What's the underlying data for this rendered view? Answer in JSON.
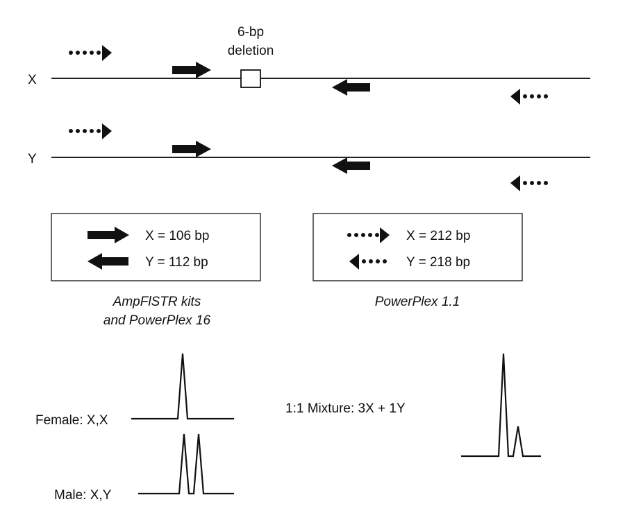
{
  "chromosomes": {
    "x_label": "X",
    "y_label": "Y"
  },
  "deletion": {
    "line1": "6-bp",
    "line2": "deletion"
  },
  "legend_left": {
    "x_size": "X = 106 bp",
    "y_size": "Y = 112 bp",
    "caption_line1": "AmpFlSTR kits",
    "caption_line2": "and PowerPlex 16"
  },
  "legend_right": {
    "x_size": "X = 212 bp",
    "y_size": "Y = 218 bp",
    "caption": "PowerPlex 1.1"
  },
  "profiles": {
    "female": "Female: X,X",
    "male": "Male: X,Y",
    "mixture": "1:1 Mixture: 3X + 1Y"
  }
}
